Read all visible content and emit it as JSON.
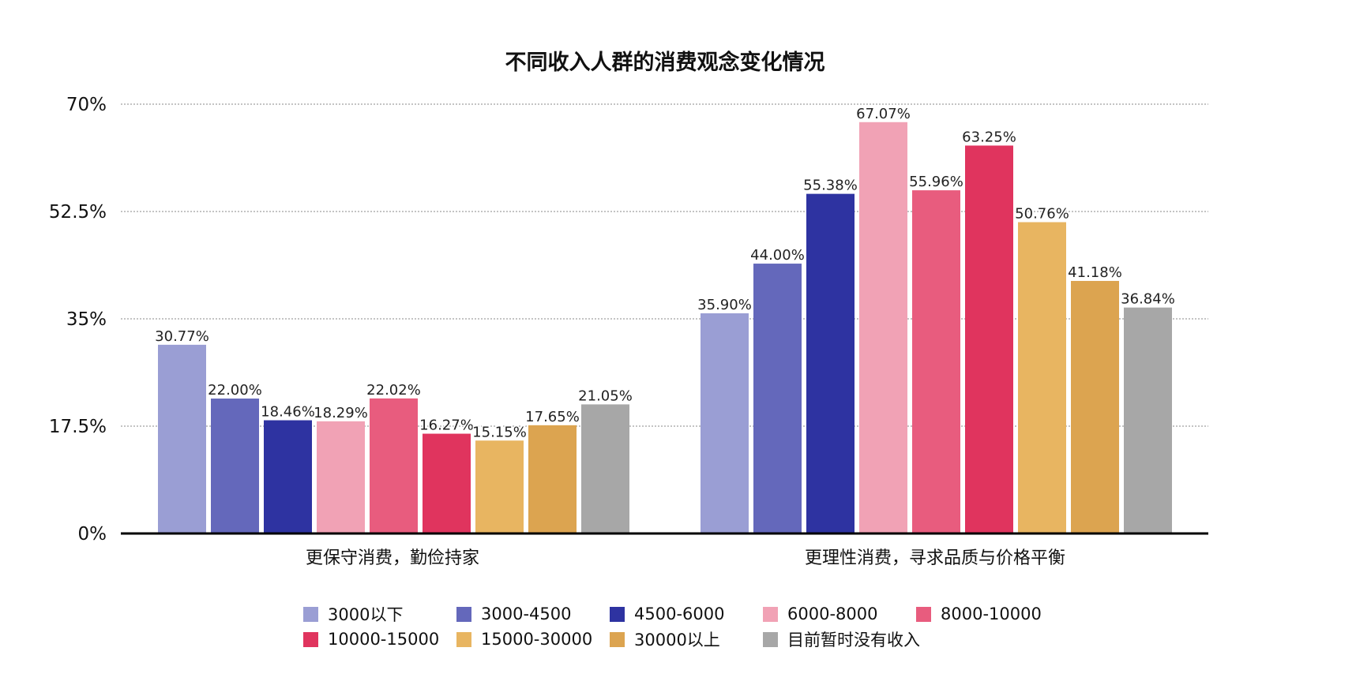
{
  "chart_data": {
    "type": "bar",
    "title": "不同收入人群的消费观念变化情况",
    "xlabel": "",
    "ylabel": "",
    "ylim": [
      0,
      70
    ],
    "yticks": [
      0,
      17.5,
      35,
      52.5,
      70
    ],
    "ytick_labels": [
      "0%",
      "17.5%",
      "35%",
      "52.5%",
      "70%"
    ],
    "grid": true,
    "legend_position": "bottom",
    "categories": [
      "更保守消费，勤俭持家",
      "更理性消费，寻求品质与价格平衡"
    ],
    "series": [
      {
        "name": "3000以下",
        "color": "#9a9ed4",
        "values": [
          30.77,
          35.9
        ],
        "labels": [
          "30.77%",
          "35.90%"
        ]
      },
      {
        "name": "3000-4500",
        "color": "#6468bb",
        "values": [
          22.0,
          44.0
        ],
        "labels": [
          "22.00%",
          "44.00%"
        ]
      },
      {
        "name": "4500-6000",
        "color": "#2e33a1",
        "values": [
          18.46,
          55.38
        ],
        "labels": [
          "18.46%",
          "55.38%"
        ]
      },
      {
        "name": "6000-8000",
        "color": "#f1a2b5",
        "values": [
          18.29,
          67.07
        ],
        "labels": [
          "18.29%",
          "67.07%"
        ]
      },
      {
        "name": "8000-10000",
        "color": "#e85c7e",
        "values": [
          22.02,
          55.96
        ],
        "labels": [
          "22.02%",
          "55.96%"
        ]
      },
      {
        "name": "10000-15000",
        "color": "#e0345e",
        "values": [
          16.27,
          63.25
        ],
        "labels": [
          "16.27%",
          "63.25%"
        ]
      },
      {
        "name": "15000-30000",
        "color": "#e8b561",
        "values": [
          15.15,
          50.76
        ],
        "labels": [
          "15.15%",
          "50.76%"
        ]
      },
      {
        "name": "30000以上",
        "color": "#dca450",
        "values": [
          17.65,
          41.18
        ],
        "labels": [
          "17.65%",
          "41.18%"
        ]
      },
      {
        "name": "目前暂时没有收入",
        "color": "#a7a7a7",
        "values": [
          21.05,
          36.84
        ],
        "labels": [
          "21.05%",
          "36.84%"
        ]
      }
    ]
  }
}
